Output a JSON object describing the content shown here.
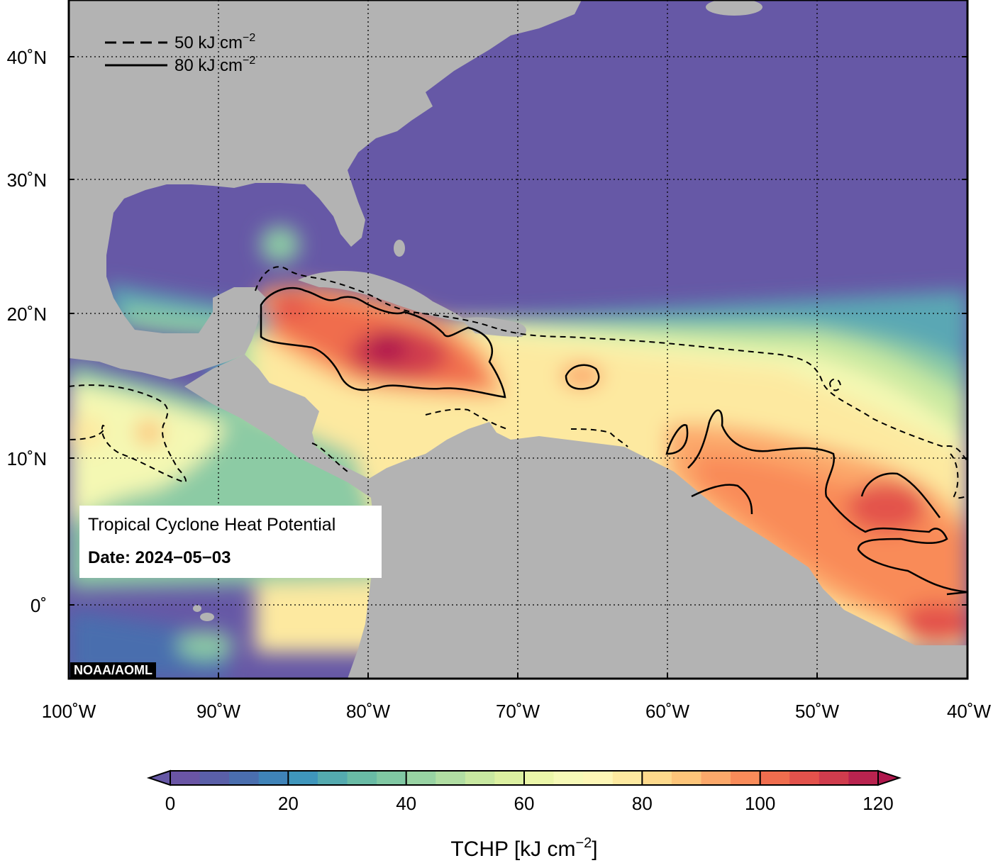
{
  "map": {
    "region": "Tropical Atlantic, Caribbean and Gulf of Mexico",
    "lon_range": [
      -100,
      -40
    ],
    "lat_range": [
      -5,
      45
    ],
    "x_ticks": [
      "100˚W",
      "90˚W",
      "80˚W",
      "70˚W",
      "60˚W",
      "50˚W",
      "40˚W"
    ],
    "y_ticks": [
      "40˚N",
      "30˚N",
      "20˚N",
      "10˚N",
      "0˚"
    ],
    "grid": "dotted",
    "land_color": "#b3b3b3",
    "low_color": "#6658a6",
    "high_color": "#b0174d"
  },
  "legend": {
    "dashed_label": "50 kJ cm",
    "solid_label": "80 kJ cm",
    "exponent": "−2"
  },
  "info": {
    "title": "Tropical Cyclone Heat Potential",
    "date": "Date: 2024−05−03"
  },
  "credit": "NOAA/AOML",
  "colorbar": {
    "ticks": [
      "0",
      "20",
      "40",
      "60",
      "80",
      "100",
      "120"
    ],
    "min": 0,
    "max": 120,
    "step": 5,
    "title": "TCHP [kJ cm",
    "title_exponent": "−2",
    "title_close": "]",
    "colors": [
      "#6a55a5",
      "#5a5fa8",
      "#4a6eae",
      "#3f83b8",
      "#3f96bc",
      "#54aaaf",
      "#69bba5",
      "#80c8a3",
      "#98d3a3",
      "#b1dea3",
      "#c8e8a1",
      "#dcf0a1",
      "#ebf6a9",
      "#f6f9b7",
      "#fdf6b6",
      "#fde9a0",
      "#fdd98c",
      "#fdc57a",
      "#fca86a",
      "#f98b59",
      "#f06d4e",
      "#e3524c",
      "#d03c4d",
      "#b9234f"
    ]
  }
}
